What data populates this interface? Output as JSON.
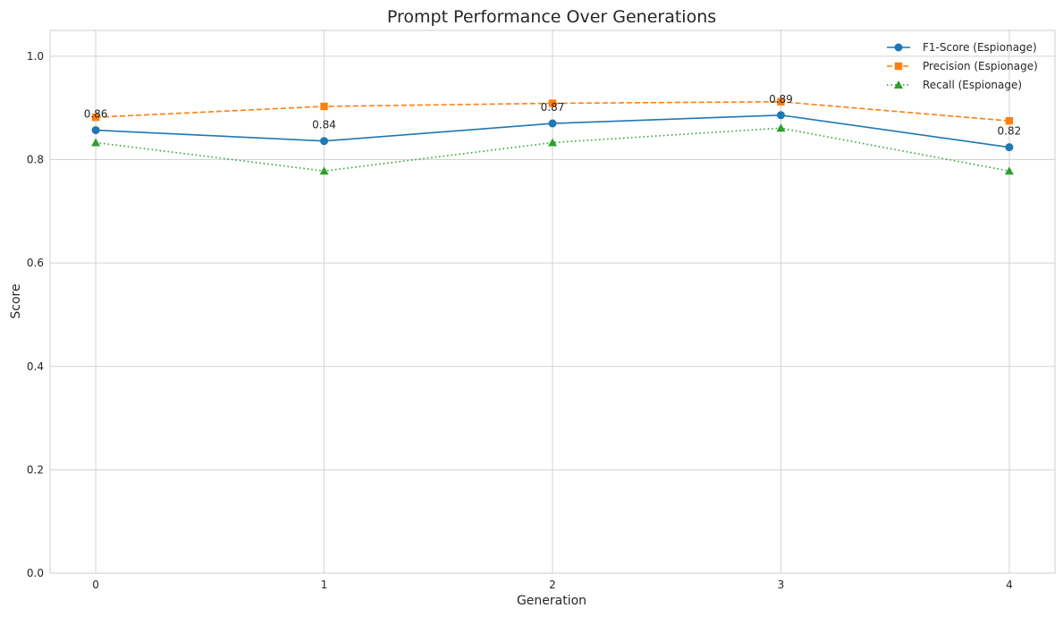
{
  "chart_data": {
    "type": "line",
    "title": "Prompt Performance Over Generations",
    "xlabel": "Generation",
    "ylabel": "Score",
    "x": [
      0,
      1,
      2,
      3,
      4
    ],
    "xticks": [
      "0",
      "1",
      "2",
      "3",
      "4"
    ],
    "yticks": [
      "0.0",
      "0.2",
      "0.4",
      "0.6",
      "0.8",
      "1.0"
    ],
    "xlim": [
      -0.2,
      4.2
    ],
    "ylim": [
      0,
      1.05
    ],
    "grid": true,
    "legend_position": "top-right",
    "series": [
      {
        "name": "F1-Score (Espionage)",
        "values": [
          0.857,
          0.836,
          0.87,
          0.886,
          0.824
        ],
        "color": "#1f77b4",
        "line_style": "solid",
        "marker": "circle"
      },
      {
        "name": "Precision (Espionage)",
        "values": [
          0.882,
          0.903,
          0.909,
          0.912,
          0.875
        ],
        "color": "#ff7f0e",
        "line_style": "dashed",
        "marker": "square"
      },
      {
        "name": "Recall (Espionage)",
        "values": [
          0.833,
          0.778,
          0.833,
          0.861,
          0.778
        ],
        "color": "#2ca02c",
        "line_style": "dotted",
        "marker": "triangle"
      }
    ],
    "annotations": [
      {
        "x": 0,
        "y": 0.857,
        "text": "0.86"
      },
      {
        "x": 1,
        "y": 0.836,
        "text": "0.84"
      },
      {
        "x": 2,
        "y": 0.87,
        "text": "0.87"
      },
      {
        "x": 3,
        "y": 0.886,
        "text": "0.89"
      },
      {
        "x": 4,
        "y": 0.824,
        "text": "0.82"
      }
    ]
  }
}
